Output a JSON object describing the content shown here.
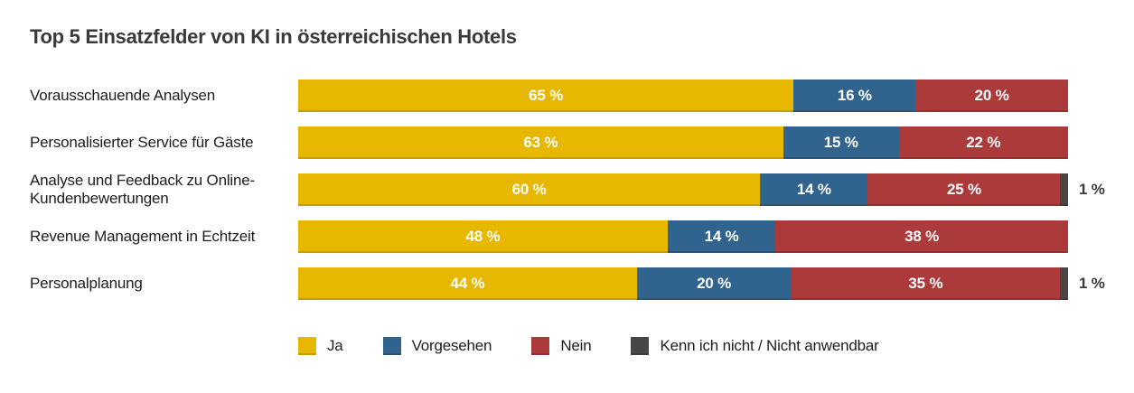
{
  "title": "Top 5 Einsatzfelder von KI in österreichischen Hotels",
  "colors": {
    "title_text": "#3a3a38",
    "label_text": "#1d1d1b",
    "bar_value_text": "#ffffff",
    "outside_value_text": "#3c3b39",
    "background": "#ffffff"
  },
  "chart_data": {
    "type": "bar",
    "orientation": "horizontal",
    "stacked": true,
    "unit": "%",
    "inside_label_min": 5,
    "title": "Top 5 Einsatzfelder von KI in österreichischen Hotels",
    "legend_position": "bottom",
    "axis_range": [
      0,
      100
    ],
    "grid": false,
    "categories": [
      "Vorausschauende Analysen",
      "Personalisierter Service für Gäste",
      "Analyse und Feedback zu Online-Kundenbewertungen",
      "Revenue Management in Echtzeit",
      "Personalplanung"
    ],
    "series": [
      {
        "key": "ja",
        "name": "Ja",
        "color": "#E8B800",
        "values": [
          65,
          63,
          60,
          48,
          44
        ]
      },
      {
        "key": "vorgesehen",
        "name": "Vorgesehen",
        "color": "#30648F",
        "values": [
          16,
          15,
          14,
          14,
          20
        ]
      },
      {
        "key": "nein",
        "name": "Nein",
        "color": "#AC3A3A",
        "values": [
          20,
          22,
          25,
          38,
          35
        ]
      },
      {
        "key": "kenn-ich-nicht",
        "name": "Kenn ich nicht / Nicht anwendbar",
        "color": "#474645",
        "values": [
          0,
          0,
          1,
          0,
          1
        ]
      }
    ]
  }
}
